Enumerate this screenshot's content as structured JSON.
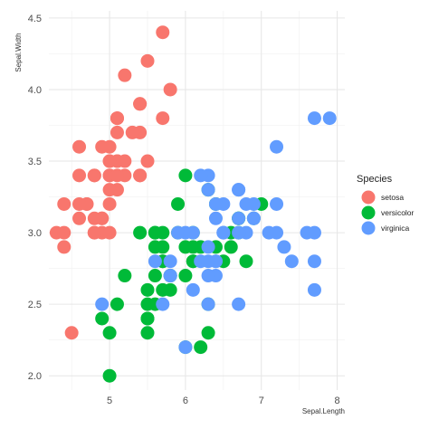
{
  "chart_data": {
    "type": "scatter",
    "xlabel": "Sepal.Length",
    "ylabel": "Sepal.Width",
    "xlim": [
      4.2,
      8.1
    ],
    "ylim": [
      1.9,
      4.55
    ],
    "xticks": [
      5,
      6,
      7,
      8
    ],
    "yticks": [
      2.0,
      2.5,
      3.0,
      3.5,
      4.0,
      4.5
    ],
    "ytick_labels": [
      "2.0",
      "2.5",
      "3.0",
      "3.5",
      "4.0",
      "4.5"
    ],
    "grid": true,
    "legend_position": "right",
    "legend_title": "Species",
    "series": [
      {
        "name": "setosa",
        "color": "#F8766D",
        "points": [
          [
            5.1,
            3.5
          ],
          [
            4.9,
            3.0
          ],
          [
            4.7,
            3.2
          ],
          [
            4.6,
            3.1
          ],
          [
            5.0,
            3.6
          ],
          [
            5.4,
            3.9
          ],
          [
            4.6,
            3.4
          ],
          [
            5.0,
            3.4
          ],
          [
            4.4,
            2.9
          ],
          [
            4.9,
            3.1
          ],
          [
            5.4,
            3.7
          ],
          [
            4.8,
            3.4
          ],
          [
            4.8,
            3.0
          ],
          [
            4.3,
            3.0
          ],
          [
            5.8,
            4.0
          ],
          [
            5.7,
            4.4
          ],
          [
            5.4,
            3.9
          ],
          [
            5.1,
            3.5
          ],
          [
            5.7,
            3.8
          ],
          [
            5.1,
            3.8
          ],
          [
            5.4,
            3.4
          ],
          [
            5.1,
            3.7
          ],
          [
            4.6,
            3.6
          ],
          [
            5.1,
            3.3
          ],
          [
            4.8,
            3.4
          ],
          [
            5.0,
            3.0
          ],
          [
            5.0,
            3.4
          ],
          [
            5.2,
            3.5
          ],
          [
            5.2,
            3.4
          ],
          [
            4.7,
            3.2
          ],
          [
            4.8,
            3.1
          ],
          [
            5.4,
            3.4
          ],
          [
            5.2,
            4.1
          ],
          [
            5.5,
            4.2
          ],
          [
            4.9,
            3.1
          ],
          [
            5.0,
            3.2
          ],
          [
            5.5,
            3.5
          ],
          [
            4.9,
            3.6
          ],
          [
            4.4,
            3.0
          ],
          [
            5.1,
            3.4
          ],
          [
            5.0,
            3.5
          ],
          [
            4.5,
            2.3
          ],
          [
            4.4,
            3.2
          ],
          [
            5.0,
            3.5
          ],
          [
            5.1,
            3.8
          ],
          [
            4.8,
            3.0
          ],
          [
            5.1,
            3.8
          ],
          [
            4.6,
            3.2
          ],
          [
            5.3,
            3.7
          ],
          [
            5.0,
            3.3
          ]
        ]
      },
      {
        "name": "versicolor",
        "color": "#00BA38",
        "points": [
          [
            7.0,
            3.2
          ],
          [
            6.4,
            3.2
          ],
          [
            6.9,
            3.1
          ],
          [
            5.5,
            2.3
          ],
          [
            6.5,
            2.8
          ],
          [
            5.7,
            2.8
          ],
          [
            6.3,
            3.3
          ],
          [
            4.9,
            2.4
          ],
          [
            6.6,
            2.9
          ],
          [
            5.2,
            2.7
          ],
          [
            5.0,
            2.0
          ],
          [
            5.9,
            3.0
          ],
          [
            6.0,
            2.2
          ],
          [
            6.1,
            2.9
          ],
          [
            5.6,
            2.9
          ],
          [
            6.7,
            3.1
          ],
          [
            5.6,
            3.0
          ],
          [
            5.8,
            2.7
          ],
          [
            6.2,
            2.2
          ],
          [
            5.6,
            2.5
          ],
          [
            5.9,
            3.2
          ],
          [
            6.1,
            2.8
          ],
          [
            6.3,
            2.5
          ],
          [
            6.1,
            2.8
          ],
          [
            6.4,
            2.9
          ],
          [
            6.6,
            3.0
          ],
          [
            6.8,
            2.8
          ],
          [
            6.7,
            3.0
          ],
          [
            6.0,
            2.9
          ],
          [
            5.7,
            2.6
          ],
          [
            5.5,
            2.4
          ],
          [
            5.5,
            2.4
          ],
          [
            5.8,
            2.7
          ],
          [
            6.0,
            2.7
          ],
          [
            5.4,
            3.0
          ],
          [
            6.0,
            3.4
          ],
          [
            6.7,
            3.1
          ],
          [
            6.3,
            2.3
          ],
          [
            5.6,
            3.0
          ],
          [
            5.5,
            2.5
          ],
          [
            5.5,
            2.6
          ],
          [
            6.1,
            3.0
          ],
          [
            5.8,
            2.6
          ],
          [
            5.0,
            2.3
          ],
          [
            5.6,
            2.7
          ],
          [
            5.7,
            3.0
          ],
          [
            5.7,
            2.9
          ],
          [
            6.2,
            2.9
          ],
          [
            5.1,
            2.5
          ],
          [
            5.7,
            2.8
          ]
        ]
      },
      {
        "name": "virginica",
        "color": "#619CFF",
        "points": [
          [
            6.3,
            3.3
          ],
          [
            5.8,
            2.7
          ],
          [
            7.1,
            3.0
          ],
          [
            6.3,
            2.9
          ],
          [
            6.5,
            3.0
          ],
          [
            7.6,
            3.0
          ],
          [
            4.9,
            2.5
          ],
          [
            7.3,
            2.9
          ],
          [
            6.7,
            2.5
          ],
          [
            7.2,
            3.6
          ],
          [
            6.5,
            3.2
          ],
          [
            6.4,
            2.7
          ],
          [
            6.8,
            3.0
          ],
          [
            5.7,
            2.5
          ],
          [
            5.8,
            2.8
          ],
          [
            6.4,
            3.2
          ],
          [
            6.5,
            3.0
          ],
          [
            7.7,
            3.8
          ],
          [
            7.7,
            2.6
          ],
          [
            6.0,
            2.2
          ],
          [
            6.9,
            3.2
          ],
          [
            5.6,
            2.8
          ],
          [
            7.7,
            2.8
          ],
          [
            6.3,
            2.7
          ],
          [
            6.7,
            3.3
          ],
          [
            7.2,
            3.2
          ],
          [
            6.2,
            2.8
          ],
          [
            6.1,
            3.0
          ],
          [
            6.4,
            2.8
          ],
          [
            7.2,
            3.0
          ],
          [
            7.4,
            2.8
          ],
          [
            7.9,
            3.8
          ],
          [
            6.4,
            2.8
          ],
          [
            6.3,
            2.8
          ],
          [
            6.1,
            2.6
          ],
          [
            7.7,
            3.0
          ],
          [
            6.3,
            3.4
          ],
          [
            6.4,
            3.1
          ],
          [
            6.0,
            3.0
          ],
          [
            6.9,
            3.1
          ],
          [
            6.7,
            3.1
          ],
          [
            6.9,
            3.1
          ],
          [
            5.8,
            2.7
          ],
          [
            6.8,
            3.2
          ],
          [
            6.7,
            3.3
          ],
          [
            6.7,
            3.0
          ],
          [
            6.3,
            2.5
          ],
          [
            6.5,
            3.0
          ],
          [
            6.2,
            3.4
          ],
          [
            5.9,
            3.0
          ]
        ]
      }
    ]
  }
}
